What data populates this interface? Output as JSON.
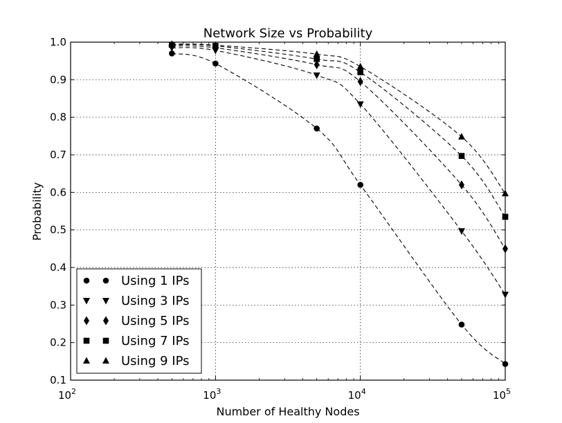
{
  "chart_data": {
    "type": "line",
    "title": "Network Size vs Probability",
    "xlabel": "Number of Healthy Nodes",
    "ylabel": "Probability",
    "xscale": "log",
    "xlim": [
      100,
      100000
    ],
    "ylim": [
      0.1,
      1.0
    ],
    "xticks": [
      {
        "value": 100,
        "base": "10",
        "exp": "2"
      },
      {
        "value": 1000,
        "base": "10",
        "exp": "3"
      },
      {
        "value": 10000,
        "base": "10",
        "exp": "4"
      },
      {
        "value": 100000,
        "base": "10",
        "exp": "5"
      }
    ],
    "yticks": [
      0.1,
      0.2,
      0.3,
      0.4,
      0.5,
      0.6,
      0.7,
      0.8,
      0.9,
      1.0
    ],
    "ytick_labels": [
      "0.1",
      "0.2",
      "0.3",
      "0.4",
      "0.5",
      "0.6",
      "0.7",
      "0.8",
      "0.9",
      "1.0"
    ],
    "grid": true,
    "legend_position": "lower-left",
    "line_style": "dashed",
    "color": "#000000",
    "x": [
      500,
      1000,
      5000,
      10000,
      50000,
      100000
    ],
    "series": [
      {
        "name": "Using 1 IPs",
        "marker": "circle",
        "values": [
          0.97,
          0.943,
          0.77,
          0.62,
          0.248,
          0.143
        ]
      },
      {
        "name": "Using 3 IPs",
        "marker": "triangle-down",
        "values": [
          0.985,
          0.978,
          0.912,
          0.835,
          0.497,
          0.328
        ]
      },
      {
        "name": "Using 5 IPs",
        "marker": "diamond",
        "values": [
          0.99,
          0.985,
          0.94,
          0.895,
          0.62,
          0.45
        ]
      },
      {
        "name": "Using 7 IPs",
        "marker": "square",
        "values": [
          0.993,
          0.99,
          0.955,
          0.92,
          0.697,
          0.535
        ]
      },
      {
        "name": "Using 9 IPs",
        "marker": "triangle-up",
        "values": [
          0.995,
          0.992,
          0.968,
          0.935,
          0.748,
          0.597
        ]
      }
    ]
  }
}
